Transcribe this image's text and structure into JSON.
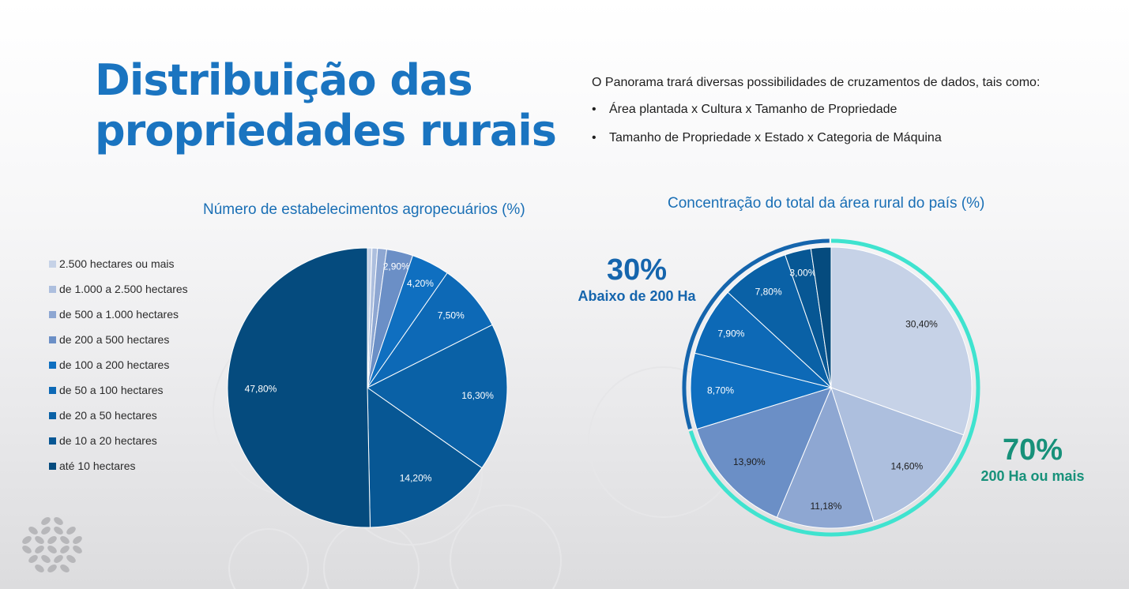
{
  "title": "Distribuição das propriedades rurais",
  "intro": {
    "lead": "O Panorama trará diversas possibilidades de cruzamentos de dados, tais como:",
    "bullets": [
      "Área plantada x Cultura x Tamanho de Propriedade",
      "Tamanho de Propriedade x Estado x Categoria de Máquina"
    ]
  },
  "callouts": {
    "left_pct": "30%",
    "left_label": "Abaixo de 200 Ha",
    "right_pct": "70%",
    "right_label": "200 Ha ou mais"
  },
  "colors": {
    "title": "#1a74c0",
    "ring_below": "#1565ad",
    "ring_above": "#3fe3cf",
    "callout_right": "#17917a"
  },
  "chart_data": [
    {
      "type": "pie",
      "title": "Número de estabelecimentos agropecuários (%)",
      "legend_position": "left",
      "categories": [
        "2.500 hectares ou mais",
        "de 1.000 a 2.500 hectares",
        "de 500 a 1.000 hectares",
        "de 200 a 500 hectares",
        "de 100 a 200 hectares",
        "de 50 a 100 hectares",
        "de 20 a 50 hectares",
        "de 10 a 20 hectares",
        "até 10 hectares"
      ],
      "values": [
        0.5,
        0.6,
        1.0,
        2.9,
        4.2,
        7.5,
        16.3,
        14.2,
        47.8
      ],
      "labels": [
        "",
        "",
        "",
        "2,90%",
        "4,20%",
        "7,50%",
        "16,30%",
        "14,20%",
        "47,80%"
      ],
      "colors": [
        "#c6d2e7",
        "#adbfde",
        "#8ea7d2",
        "#6b8fc6",
        "#0f6fc0",
        "#0d69b6",
        "#0a61a6",
        "#075794",
        "#054b7e"
      ]
    },
    {
      "type": "pie",
      "title": "Concentração do total da área rural do país (%)",
      "categories": [
        "2.500 hectares ou mais",
        "de 1.000 a 2.500 hectares",
        "de 500 a 1.000 hectares",
        "de 200 a 500 hectares",
        "de 100 a 200 hectares",
        "de 50 a 100 hectares",
        "de 20 a 50 hectares",
        "de 10 a 20 hectares",
        "até 10 hectares"
      ],
      "values": [
        30.4,
        14.6,
        11.18,
        13.9,
        8.7,
        7.9,
        7.8,
        3.0,
        2.3
      ],
      "labels": [
        "30,40%",
        "14,60%",
        "11,18%",
        "13,90%",
        "8,70%",
        "7,90%",
        "7,80%",
        "3,00%",
        ""
      ],
      "colors": [
        "#c6d2e7",
        "#adbfde",
        "#8ea7d2",
        "#6b8fc6",
        "#0f6fc0",
        "#0d69b6",
        "#0a61a6",
        "#075794",
        "#054b7e"
      ]
    }
  ]
}
